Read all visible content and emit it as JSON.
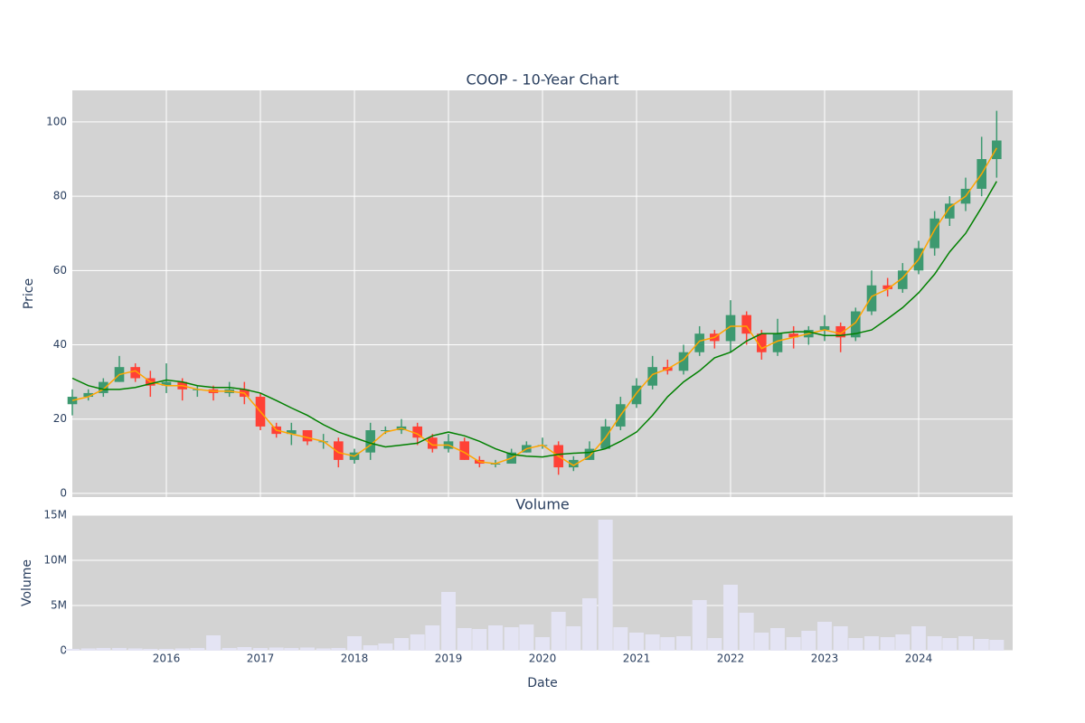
{
  "chart_data": [
    {
      "type": "candlestick",
      "title": "COOP - 10-Year Chart",
      "y_title": "Price",
      "x": [
        2015,
        2015.17,
        2015.33,
        2015.5,
        2015.67,
        2015.83,
        2016,
        2016.17,
        2016.33,
        2016.5,
        2016.67,
        2016.83,
        2017,
        2017.17,
        2017.33,
        2017.5,
        2017.67,
        2017.83,
        2018,
        2018.17,
        2018.33,
        2018.5,
        2018.67,
        2018.83,
        2019,
        2019.17,
        2019.33,
        2019.5,
        2019.67,
        2019.83,
        2020,
        2020.17,
        2020.33,
        2020.5,
        2020.67,
        2020.83,
        2021,
        2021.17,
        2021.33,
        2021.5,
        2021.67,
        2021.83,
        2022,
        2022.17,
        2022.33,
        2022.5,
        2022.67,
        2022.83,
        2023,
        2023.17,
        2023.33,
        2023.5,
        2023.67,
        2023.83,
        2024,
        2024.17,
        2024.33,
        2024.5,
        2024.67,
        2024.83
      ],
      "open": [
        24,
        26,
        27,
        30,
        34,
        31,
        29,
        30,
        28,
        28,
        27,
        28,
        26,
        18,
        16,
        17,
        14,
        14,
        9,
        11,
        17,
        17,
        18,
        15,
        12,
        14,
        9,
        8,
        8,
        11,
        13,
        13,
        7,
        9,
        12,
        18,
        24,
        29,
        34,
        33,
        38,
        43,
        41,
        48,
        43,
        38,
        43,
        42,
        44,
        45,
        42,
        49,
        56,
        55,
        60,
        66,
        74,
        78,
        82,
        90
      ],
      "high": [
        28,
        28,
        31,
        37,
        35,
        33,
        35,
        31,
        29,
        29,
        30,
        30,
        27,
        19,
        19,
        17,
        16,
        15,
        12,
        19,
        18,
        20,
        19,
        16,
        16,
        15,
        10,
        9,
        12,
        14,
        15,
        14,
        10,
        14,
        20,
        26,
        31,
        37,
        36,
        40,
        45,
        44,
        52,
        49,
        44,
        47,
        45,
        45,
        48,
        46,
        50,
        60,
        58,
        62,
        68,
        76,
        80,
        85,
        96,
        103
      ],
      "low": [
        21,
        25,
        26,
        30,
        30,
        26,
        27,
        25,
        26,
        25,
        26,
        24,
        17,
        15,
        13,
        13,
        12,
        7,
        8,
        9,
        16,
        16,
        13,
        11,
        11,
        9,
        7,
        7,
        8,
        11,
        12,
        5,
        6,
        9,
        12,
        17,
        23,
        28,
        32,
        32,
        37,
        39,
        38,
        40,
        36,
        37,
        39,
        40,
        41,
        38,
        41,
        48,
        53,
        54,
        59,
        64,
        72,
        76,
        80,
        85
      ],
      "close": [
        26,
        27,
        30,
        34,
        31,
        29,
        30,
        28,
        28,
        27,
        28,
        26,
        18,
        16,
        17,
        14,
        14,
        9,
        11,
        17,
        17,
        18,
        15,
        12,
        14,
        9,
        8,
        8,
        11,
        13,
        13,
        7,
        9,
        12,
        18,
        24,
        29,
        34,
        33,
        38,
        43,
        41,
        48,
        43,
        38,
        43,
        42,
        44,
        45,
        42,
        49,
        56,
        55,
        60,
        66,
        74,
        78,
        82,
        90,
        95
      ],
      "increasing_color": "#3d9970",
      "decreasing_color": "#ff4136",
      "ma_lines": [
        {
          "color": "#ffa500",
          "values": [
            25,
            26,
            28,
            32,
            33,
            30,
            29,
            29,
            28,
            27.5,
            27.5,
            27,
            22,
            17,
            16,
            15,
            14,
            11,
            10,
            13,
            16.5,
            17.5,
            16,
            13,
            13,
            11,
            8.5,
            8,
            9.5,
            12,
            13,
            10,
            7.5,
            10,
            15,
            21,
            27,
            32,
            33.5,
            36,
            41,
            42,
            45,
            45,
            39,
            41,
            42,
            43,
            44,
            43,
            46,
            53,
            55,
            58,
            63,
            71,
            77,
            80,
            86,
            93
          ]
        },
        {
          "color": "#008000",
          "values": [
            31,
            29,
            28,
            28,
            28.5,
            29.5,
            30.5,
            30,
            29,
            28.5,
            28.5,
            28,
            27,
            25,
            23,
            21,
            18.5,
            16.5,
            15,
            13.5,
            12.5,
            13,
            13.5,
            15.5,
            16.5,
            15.5,
            14,
            12,
            10.5,
            10,
            9.8,
            10.5,
            10.8,
            11,
            12,
            14,
            16.5,
            21,
            26,
            30,
            33,
            36.5,
            38,
            41,
            43,
            43,
            43.5,
            43.5,
            42.5,
            42.5,
            43,
            44,
            47,
            50,
            54,
            59,
            65,
            70,
            77,
            84
          ]
        }
      ],
      "xlim": [
        2015,
        2025
      ],
      "xticks": [
        2016,
        2017,
        2018,
        2019,
        2020,
        2021,
        2022,
        2023,
        2024
      ],
      "ylim": [
        -1,
        108.5
      ],
      "yticks": [
        0,
        20,
        40,
        60,
        80,
        100
      ],
      "grid": true
    },
    {
      "type": "bar",
      "title": "Volume",
      "y_title": "Volume",
      "x_title": "Date",
      "color": "#e4e4f4",
      "values": [
        200000,
        250000,
        300000,
        300000,
        250000,
        200000,
        200000,
        250000,
        300000,
        1700000,
        300000,
        400000,
        300000,
        350000,
        300000,
        350000,
        250000,
        300000,
        1600000,
        600000,
        800000,
        1400000,
        1800000,
        2800000,
        6500000,
        2500000,
        2400000,
        2800000,
        2600000,
        2900000,
        1500000,
        4300000,
        2700000,
        5800000,
        14500000,
        2600000,
        2000000,
        1800000,
        1500000,
        1600000,
        5600000,
        1400000,
        7300000,
        4200000,
        2000000,
        2500000,
        1500000,
        2200000,
        3200000,
        2700000,
        1400000,
        1600000,
        1500000,
        1800000,
        2700000,
        1600000,
        1400000,
        1600000,
        1300000,
        1200000
      ],
      "ylim": [
        0,
        15000000
      ],
      "yticks": [
        0,
        {
          "value": 5000000,
          "label": "5M"
        },
        {
          "value": 10000000,
          "label": "10M"
        },
        {
          "value": 15000000,
          "label": "15M"
        }
      ],
      "grid": true
    }
  ]
}
